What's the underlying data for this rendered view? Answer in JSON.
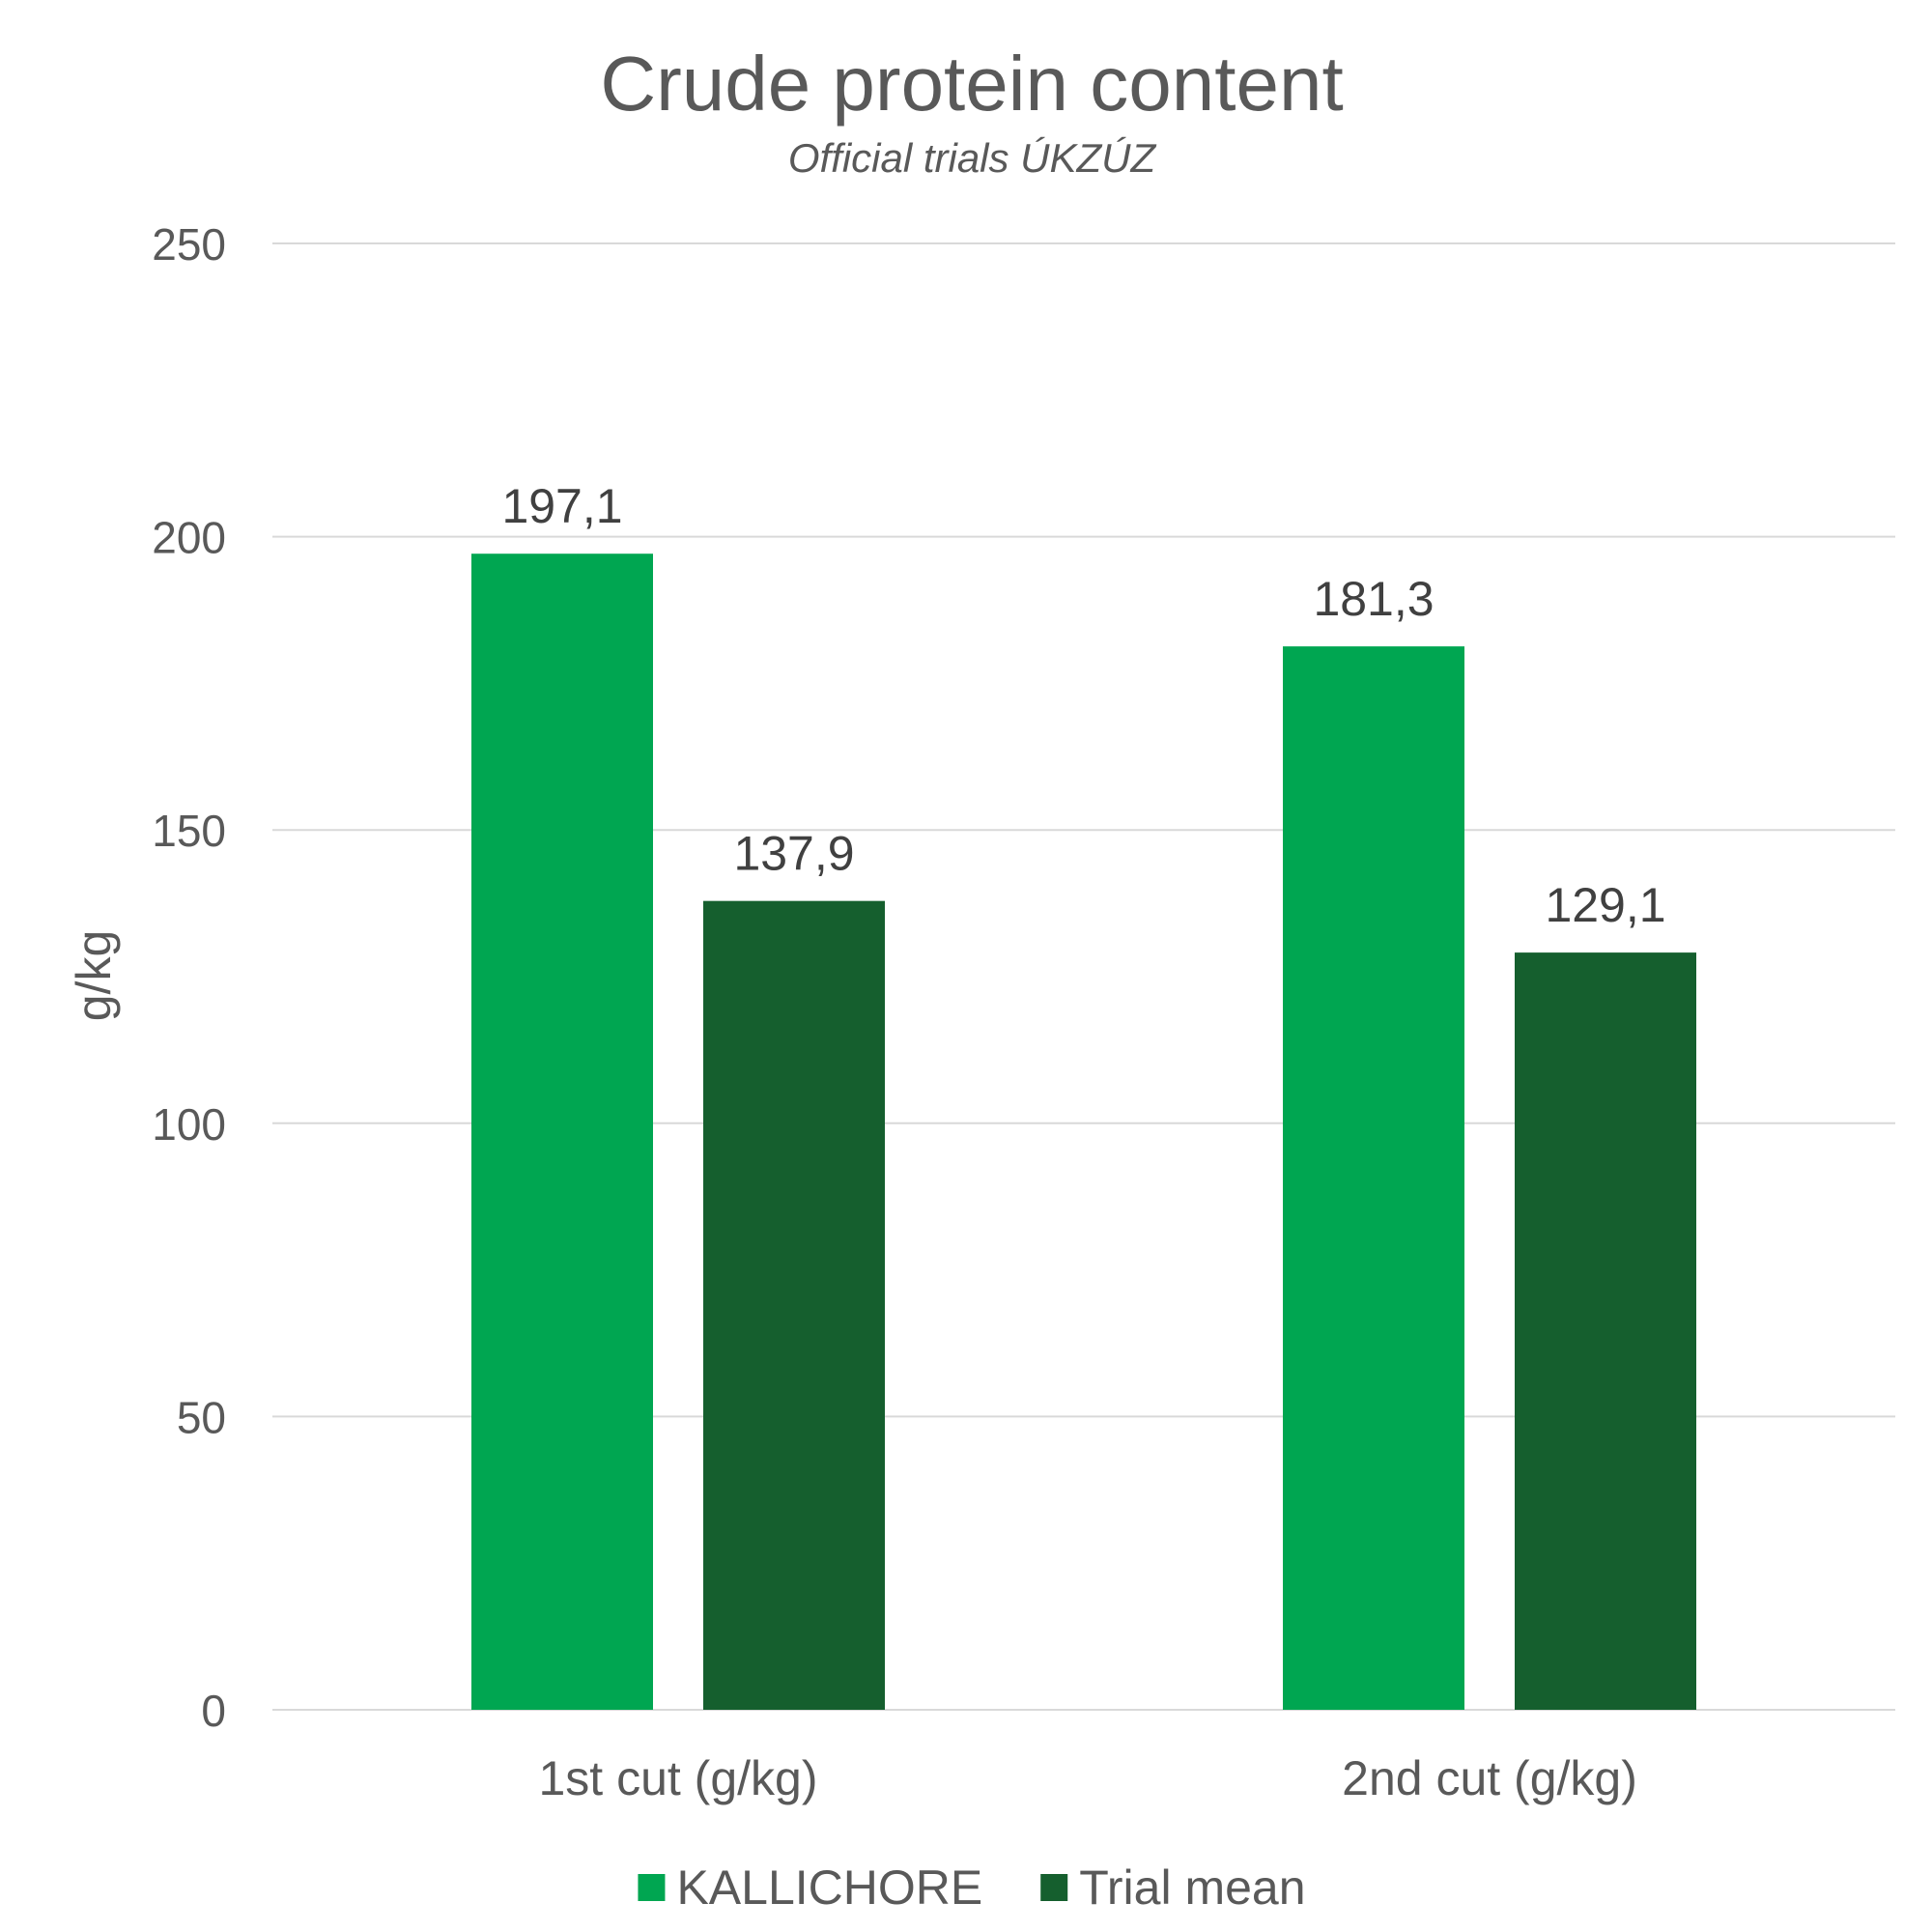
{
  "chart_data": {
    "type": "bar",
    "title": "Crude protein content",
    "subtitle": "Official trials ÚKZÚZ",
    "ylabel": "g/kg",
    "xlabel": "",
    "ylim": [
      0,
      250
    ],
    "yticks": [
      0,
      50,
      100,
      150,
      200,
      250
    ],
    "categories": [
      "1st cut (g/kg)",
      "2nd cut (g/kg)"
    ],
    "series": [
      {
        "name": "KALLICHORE",
        "color": "#00a651",
        "values": [
          197.1,
          181.3
        ],
        "labels": [
          "197,1",
          "181,3"
        ]
      },
      {
        "name": "Trial mean",
        "color": "#155f2e",
        "values": [
          137.9,
          129.1
        ],
        "labels": [
          "137,9",
          "129,1"
        ]
      }
    ],
    "grid": true,
    "legend": "bottom"
  }
}
